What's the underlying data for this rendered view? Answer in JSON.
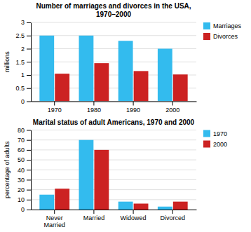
{
  "chart_data": [
    {
      "type": "bar",
      "title": "Number of marriages and divorces in the USA,\n1970–2000",
      "categories": [
        "1970",
        "1980",
        "1990",
        "2000"
      ],
      "series": [
        {
          "name": "Marriages",
          "color": "#33BBEE",
          "values": [
            2.5,
            2.5,
            2.3,
            2.0
          ]
        },
        {
          "name": "Divorces",
          "color": "#CC2222",
          "values": [
            1.05,
            1.45,
            1.15,
            1.02
          ]
        }
      ],
      "ylabel": "millions",
      "ylim": [
        0,
        3
      ],
      "yticks": [
        0,
        0.5,
        1,
        1.5,
        2,
        2.5,
        3
      ],
      "grid": true,
      "legend": "right"
    },
    {
      "type": "bar",
      "title": "Marital status of adult Americans, 1970 and 2000",
      "categories": [
        "Never\nMarried",
        "Married",
        "Widowed",
        "Divorced"
      ],
      "series": [
        {
          "name": "1970",
          "color": "#33BBEE",
          "values": [
            15,
            70,
            8,
            3
          ]
        },
        {
          "name": "2000",
          "color": "#CC2222",
          "values": [
            21,
            60,
            6,
            8
          ]
        }
      ],
      "ylabel": "percentage of adults",
      "ylim": [
        0,
        80
      ],
      "yticks": [
        0,
        10,
        20,
        30,
        40,
        50,
        60,
        70,
        80
      ],
      "grid": true,
      "legend": "right"
    }
  ]
}
